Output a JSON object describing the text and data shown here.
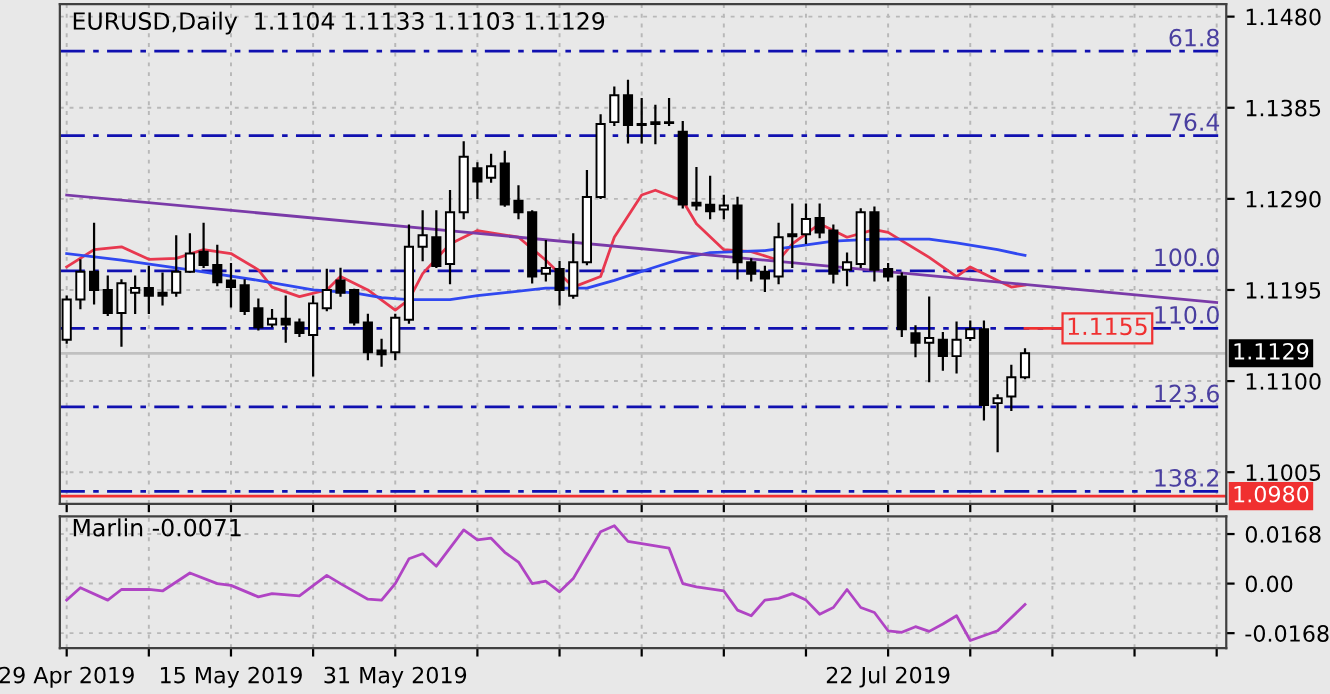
{
  "chart_data": [
    {
      "type": "candlestick",
      "title": "EURUSD,Daily  1.1104 1.1133 1.1103 1.1129",
      "categories": [
        "29 Apr 2019",
        null,
        null,
        null,
        null,
        null,
        null,
        null,
        null,
        null,
        null,
        null,
        "15 May 2019",
        null,
        null,
        null,
        null,
        null,
        null,
        null,
        null,
        null,
        null,
        null,
        "31 May 2019",
        null,
        null,
        null,
        null,
        null,
        null,
        null,
        null,
        null,
        null,
        null,
        null,
        null,
        null,
        null,
        null,
        null,
        null,
        null,
        null,
        null,
        null,
        null,
        null,
        null,
        null,
        null,
        null,
        null,
        null,
        null,
        null,
        null,
        null,
        null,
        "22 Jul 2019",
        null,
        null,
        null,
        null,
        null,
        null,
        null,
        null,
        null,
        null,
        null,
        null,
        null,
        null,
        null,
        null,
        null,
        null,
        null,
        null,
        null,
        null,
        null,
        null
      ],
      "ohlc": [
        [
          1.1143,
          1.1188,
          1.114,
          1.1185
        ],
        [
          1.1185,
          1.1226,
          1.1176,
          1.1214
        ],
        [
          1.1214,
          1.1264,
          1.1181,
          1.1195
        ],
        [
          1.1195,
          1.1209,
          1.1169,
          1.1171
        ],
        [
          1.1171,
          1.1205,
          1.1137,
          1.1202
        ],
        [
          1.1192,
          1.1209,
          1.1171,
          1.1197
        ],
        [
          1.1197,
          1.1219,
          1.1171,
          1.1189
        ],
        [
          1.1192,
          1.1212,
          1.118,
          1.1189
        ],
        [
          1.1192,
          1.1251,
          1.1189,
          1.1214
        ],
        [
          1.1214,
          1.1253,
          1.1214,
          1.1233
        ],
        [
          1.1235,
          1.1264,
          1.1219,
          1.1221
        ],
        [
          1.1221,
          1.1241,
          1.12,
          1.1203
        ],
        [
          1.1205,
          1.1222,
          1.1178,
          1.1198
        ],
        [
          1.12,
          1.1205,
          1.117,
          1.1173
        ],
        [
          1.1176,
          1.1185,
          1.1154,
          1.1156
        ],
        [
          1.1159,
          1.1174,
          1.1157,
          1.1165
        ],
        [
          1.1165,
          1.1188,
          1.1141,
          1.1159
        ],
        [
          1.1161,
          1.1164,
          1.1147,
          1.115
        ],
        [
          1.1148,
          1.1188,
          1.1106,
          1.1181
        ],
        [
          1.1176,
          1.1216,
          1.1174,
          1.1195
        ],
        [
          1.1205,
          1.1217,
          1.1189,
          1.1192
        ],
        [
          1.1195,
          1.1195,
          1.1159,
          1.1161
        ],
        [
          1.1161,
          1.1169,
          1.1123,
          1.113
        ],
        [
          1.1132,
          1.1143,
          1.1116,
          1.1128
        ],
        [
          1.113,
          1.1169,
          1.1123,
          1.1166
        ],
        [
          1.1164,
          1.1262,
          1.1161,
          1.124
        ],
        [
          1.124,
          1.1277,
          1.1226,
          1.1252
        ],
        [
          1.125,
          1.1277,
          1.1219,
          1.122
        ],
        [
          1.1222,
          1.1298,
          1.1202,
          1.1276
        ],
        [
          1.1276,
          1.1349,
          1.127,
          1.1334
        ],
        [
          1.1322,
          1.1327,
          1.1291,
          1.1308
        ],
        [
          1.1312,
          1.1336,
          1.1308,
          1.1324
        ],
        [
          1.1327,
          1.1339,
          1.1283,
          1.1284
        ],
        [
          1.1288,
          1.1303,
          1.127,
          1.1276
        ],
        [
          1.1276,
          1.1277,
          1.1203,
          1.1209
        ],
        [
          1.1212,
          1.1246,
          1.1205,
          1.1218
        ],
        [
          1.1217,
          1.1224,
          1.118,
          1.1195
        ],
        [
          1.1189,
          1.1253,
          1.1187,
          1.1224
        ],
        [
          1.1224,
          1.1319,
          1.1222,
          1.1292
        ],
        [
          1.1292,
          1.1377,
          1.1291,
          1.1368
        ],
        [
          1.137,
          1.1406,
          1.1367,
          1.1398
        ],
        [
          1.1398,
          1.1413,
          1.1349,
          1.1367
        ],
        [
          1.1368,
          1.1394,
          1.1349,
          1.1367
        ],
        [
          1.137,
          1.1387,
          1.1348,
          1.1368
        ],
        [
          1.137,
          1.1394,
          1.1367,
          1.1369
        ],
        [
          1.136,
          1.137,
          1.1281,
          1.1284
        ],
        [
          1.1286,
          1.1322,
          1.1279,
          1.1283
        ],
        [
          1.1284,
          1.1313,
          1.127,
          1.1277
        ],
        [
          1.1279,
          1.1293,
          1.127,
          1.1283
        ],
        [
          1.1283,
          1.1291,
          1.1207,
          1.1224
        ],
        [
          1.1224,
          1.1227,
          1.1205,
          1.1212
        ],
        [
          1.1214,
          1.1219,
          1.1194,
          1.1207
        ],
        [
          1.1209,
          1.1264,
          1.1202,
          1.125
        ],
        [
          1.1251,
          1.1284,
          1.1219,
          1.1253
        ],
        [
          1.1253,
          1.1284,
          1.1244,
          1.1269
        ],
        [
          1.127,
          1.1284,
          1.125,
          1.1255
        ],
        [
          1.1257,
          1.1262,
          1.1203,
          1.1212
        ],
        [
          1.1216,
          1.1233,
          1.12,
          1.1224
        ],
        [
          1.1222,
          1.1279,
          1.1219,
          1.1276
        ],
        [
          1.1276,
          1.1281,
          1.1205,
          1.1216
        ],
        [
          1.1217,
          1.1222,
          1.1205,
          1.1209
        ],
        [
          1.1209,
          1.1212,
          1.1147,
          1.1154
        ],
        [
          1.115,
          1.1157,
          1.1126,
          1.114
        ],
        [
          1.114,
          1.1187,
          1.11,
          1.1145
        ],
        [
          1.1143,
          1.115,
          1.1112,
          1.1126
        ],
        [
          1.1126,
          1.1161,
          1.1109,
          1.1143
        ],
        [
          1.1145,
          1.1162,
          1.1143,
          1.1154
        ],
        [
          1.1154,
          1.1162,
          1.106,
          1.1075
        ],
        [
          1.1077,
          1.1085,
          1.1027,
          1.1082
        ],
        [
          1.1084,
          1.1116,
          1.107,
          1.1104
        ],
        [
          1.1104,
          1.1133,
          1.1103,
          1.1129
        ],
        null,
        null,
        null,
        null,
        null,
        null,
        null,
        null,
        null,
        null,
        null,
        null,
        null,
        null
      ],
      "series": [
        {
          "type": "line",
          "color": "#e8384f",
          "values": [
            1.1219,
            null,
            1.1237,
            null,
            1.124,
            null,
            1.1227,
            null,
            1.1228,
            null,
            1.1237,
            null,
            1.1233,
            null,
            1.1216,
            1.1198,
            null,
            1.1188,
            null,
            1.1195,
            1.1209,
            null,
            1.1195,
            null,
            1.1174,
            1.1185,
            1.1212,
            null,
            1.1243,
            null,
            1.1257,
            null,
            null,
            1.125,
            null,
            1.1226,
            null,
            1.1198,
            null,
            1.1209,
            1.125,
            null,
            1.1294,
            1.1299,
            null,
            1.1288,
            1.1264,
            null,
            1.1237,
            null,
            1.1235,
            null,
            1.1226,
            1.1243,
            null,
            1.1264,
            null,
            1.125,
            null,
            1.1258,
            1.1255,
            null,
            null,
            1.1229,
            null,
            1.1209,
            1.1219,
            null,
            1.1205,
            1.1198,
            1.12,
            null,
            null,
            null,
            null,
            null,
            null,
            null,
            null,
            null,
            null,
            null,
            null,
            null,
            null
          ]
        },
        {
          "type": "line",
          "color": "#3048f0",
          "values": [
            1.1233,
            null,
            null,
            null,
            1.1226,
            null,
            null,
            null,
            null,
            1.1216,
            null,
            null,
            null,
            null,
            1.1205,
            null,
            null,
            null,
            1.1195,
            null,
            null,
            1.1192,
            null,
            1.1187,
            null,
            1.1185,
            null,
            null,
            1.1185,
            null,
            1.1189,
            null,
            null,
            null,
            null,
            1.1197,
            null,
            null,
            1.1197,
            null,
            1.1205,
            null,
            null,
            1.1219,
            null,
            1.1228,
            null,
            1.1234,
            null,
            null,
            null,
            1.1236,
            null,
            1.124,
            null,
            null,
            1.1246,
            null,
            null,
            1.1248,
            null,
            null,
            null,
            1.1248,
            null,
            1.1244,
            null,
            null,
            1.1237,
            null,
            1.1231,
            null,
            null,
            null,
            null,
            null,
            null,
            null,
            null,
            null,
            null,
            null,
            null,
            null,
            null
          ]
        },
        {
          "type": "line",
          "color": "#7a3aa8",
          "values": [
            1.1294,
            null,
            null,
            null,
            null,
            null,
            null,
            null,
            null,
            null,
            null,
            null,
            null,
            null,
            null,
            null,
            null,
            null,
            null,
            null,
            null,
            null,
            null,
            null,
            null,
            null,
            null,
            null,
            null,
            null,
            null,
            null,
            null,
            null,
            null,
            null,
            null,
            null,
            null,
            null,
            null,
            null,
            null,
            null,
            null,
            null,
            null,
            null,
            null,
            null,
            null,
            null,
            null,
            null,
            null,
            null,
            null,
            null,
            null,
            null,
            null,
            null,
            null,
            null,
            null,
            null,
            null,
            null,
            null,
            null,
            null,
            null,
            null,
            null,
            null,
            null,
            null,
            null,
            null,
            null,
            null,
            null,
            null,
            null,
            1.1182
          ]
        }
      ],
      "ylim": [
        1.0972,
        1.1493
      ],
      "yticks": [
        {
          "value": 1.1005,
          "label": "1.1005"
        },
        {
          "value": 1.11,
          "label": "1.1100"
        },
        {
          "value": 1.1195,
          "label": "1.1195"
        },
        {
          "value": 1.129,
          "label": "1.1290"
        },
        {
          "value": 1.1385,
          "label": "1.1385"
        },
        {
          "value": 1.148,
          "label": "1.1480"
        }
      ],
      "ref_lines": [
        {
          "axis": "y",
          "value": 1.1444,
          "color": "#1010b0",
          "line_style": "dashdot"
        },
        {
          "axis": "y",
          "value": 1.1356,
          "color": "#1010b0",
          "line_style": "dashdot"
        },
        {
          "axis": "y",
          "value": 1.1215,
          "color": "#1010b0",
          "line_style": "dashdot"
        },
        {
          "axis": "y",
          "value": 1.1155,
          "color": "#1010b0",
          "line_style": "dashdot"
        },
        {
          "axis": "y",
          "value": 1.1073,
          "color": "#1010b0",
          "line_style": "dashdot"
        },
        {
          "axis": "y",
          "value": 1.0985,
          "color": "#1010b0",
          "line_style": "dashdot"
        },
        {
          "axis": "y",
          "value": 1.1129,
          "label": "1.1129",
          "color": "#c0c0c0",
          "line_style": "solid"
        },
        {
          "axis": "y",
          "value": 1.098,
          "label": "1.0980",
          "color": "#f03030",
          "line_style": "solid"
        }
      ],
      "annotations": [
        {
          "text": "61.8",
          "y": 1.1444
        },
        {
          "text": "76.4",
          "y": 1.1356
        },
        {
          "text": "100.0",
          "y": 1.1215
        },
        {
          "text": "110.0",
          "y": 1.1155
        },
        {
          "text": "123.6",
          "y": 1.1073
        },
        {
          "text": "138.2",
          "y": 1.0985
        },
        {
          "text": "1.1155",
          "y": 1.1155
        }
      ],
      "grid": true,
      "tick_labels": "y"
    },
    {
      "type": "line",
      "title": "Marlin -0.0071",
      "series": [
        {
          "color": "#b044c4",
          "values": [
            -0.0056,
            -0.0014,
            null,
            -0.0056,
            -0.002,
            null,
            -0.002,
            -0.0025,
            null,
            0.0036,
            null,
            0.0,
            -0.0006,
            null,
            -0.0045,
            -0.0034,
            null,
            -0.0042,
            null,
            0.0028,
            0.0,
            null,
            -0.0053,
            -0.0056,
            0.0,
            0.0084,
            0.0101,
            0.0059,
            null,
            0.0182,
            0.0148,
            0.0154,
            0.0106,
            0.0073,
            0.0,
            0.0008,
            -0.0028,
            0.0017,
            null,
            0.0176,
            0.0196,
            0.0143,
            null,
            null,
            0.012,
            0.0,
            -0.0011,
            null,
            -0.0025,
            -0.009,
            -0.0109,
            -0.0056,
            -0.005,
            -0.0034,
            -0.0056,
            -0.0104,
            -0.0081,
            -0.002,
            -0.0081,
            -0.0098,
            -0.016,
            -0.0165,
            -0.0146,
            -0.0162,
            -0.0137,
            -0.0109,
            -0.0193,
            null,
            -0.016,
            null,
            -0.0071,
            null,
            null,
            null,
            null,
            null,
            null,
            null,
            null,
            null,
            null,
            null,
            null,
            null,
            null
          ]
        }
      ],
      "ylim": [
        -0.0219,
        0.0228
      ],
      "yticks": [
        {
          "value": 0.0168,
          "label": "0.0168"
        },
        {
          "value": 0.0,
          "label": "0.00"
        },
        {
          "value": -0.0168,
          "label": "-0.0168"
        }
      ],
      "grid": true
    }
  ]
}
